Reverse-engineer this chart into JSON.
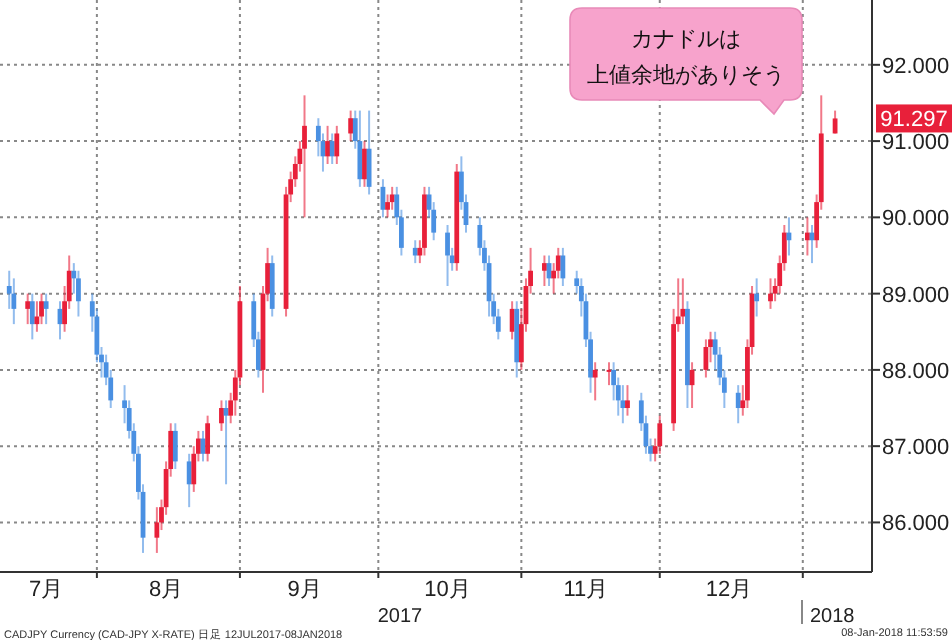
{
  "chart_data": {
    "type": "candlestick",
    "x": [
      "2017-07-13",
      "2017-07-14",
      "2017-07-17",
      "2017-07-18",
      "2017-07-19",
      "2017-07-20",
      "2017-07-21",
      "2017-07-24",
      "2017-07-25",
      "2017-07-26",
      "2017-07-27",
      "2017-07-28",
      "2017-07-31",
      "2017-08-01",
      "2017-08-02",
      "2017-08-03",
      "2017-08-04",
      "2017-08-07",
      "2017-08-08",
      "2017-08-09",
      "2017-08-10",
      "2017-08-11",
      "2017-08-14",
      "2017-08-15",
      "2017-08-16",
      "2017-08-17",
      "2017-08-18",
      "2017-08-21",
      "2017-08-22",
      "2017-08-23",
      "2017-08-24",
      "2017-08-25",
      "2017-08-28",
      "2017-08-29",
      "2017-08-30",
      "2017-08-31",
      "2017-09-01",
      "2017-09-04",
      "2017-09-05",
      "2017-09-06",
      "2017-09-07",
      "2017-09-08",
      "2017-09-11",
      "2017-09-12",
      "2017-09-13",
      "2017-09-14",
      "2017-09-15",
      "2017-09-18",
      "2017-09-19",
      "2017-09-20",
      "2017-09-21",
      "2017-09-22",
      "2017-09-25",
      "2017-09-26",
      "2017-09-27",
      "2017-09-28",
      "2017-09-29",
      "2017-10-02",
      "2017-10-03",
      "2017-10-04",
      "2017-10-05",
      "2017-10-06",
      "2017-10-09",
      "2017-10-10",
      "2017-10-11",
      "2017-10-12",
      "2017-10-13",
      "2017-10-16",
      "2017-10-17",
      "2017-10-18",
      "2017-10-19",
      "2017-10-20",
      "2017-10-23",
      "2017-10-24",
      "2017-10-25",
      "2017-10-26",
      "2017-10-27",
      "2017-10-30",
      "2017-10-31",
      "2017-11-01",
      "2017-11-02",
      "2017-11-03",
      "2017-11-06",
      "2017-11-07",
      "2017-11-08",
      "2017-11-09",
      "2017-11-10",
      "2017-11-13",
      "2017-11-14",
      "2017-11-15",
      "2017-11-16",
      "2017-11-17",
      "2017-11-20",
      "2017-11-21",
      "2017-11-22",
      "2017-11-23",
      "2017-11-24",
      "2017-11-27",
      "2017-11-28",
      "2017-11-29",
      "2017-11-30",
      "2017-12-01",
      "2017-12-04",
      "2017-12-05",
      "2017-12-06",
      "2017-12-07",
      "2017-12-08",
      "2017-12-11",
      "2017-12-12",
      "2017-12-13",
      "2017-12-14",
      "2017-12-15",
      "2017-12-18",
      "2017-12-19",
      "2017-12-20",
      "2017-12-21",
      "2017-12-22",
      "2017-12-25",
      "2017-12-26",
      "2017-12-27",
      "2017-12-28",
      "2017-12-29",
      "2018-01-02",
      "2018-01-03",
      "2018-01-04",
      "2018-01-05",
      "2018-01-08"
    ],
    "ohlc": [
      [
        89.1,
        89.3,
        88.8,
        89.0
      ],
      [
        89.0,
        89.2,
        88.6,
        88.8
      ],
      [
        88.8,
        89.0,
        88.6,
        88.9
      ],
      [
        88.9,
        89.0,
        88.4,
        88.6
      ],
      [
        88.6,
        88.9,
        88.5,
        88.7
      ],
      [
        88.7,
        89.0,
        88.6,
        88.9
      ],
      [
        88.9,
        89.0,
        88.6,
        88.8
      ],
      [
        88.8,
        88.9,
        88.4,
        88.6
      ],
      [
        88.6,
        89.1,
        88.5,
        88.9
      ],
      [
        88.9,
        89.5,
        88.8,
        89.3
      ],
      [
        89.3,
        89.4,
        89.0,
        89.2
      ],
      [
        89.2,
        89.3,
        88.7,
        88.9
      ],
      [
        88.9,
        89.0,
        88.5,
        88.7
      ],
      [
        88.7,
        88.8,
        88.1,
        88.2
      ],
      [
        88.2,
        88.3,
        87.9,
        88.1
      ],
      [
        88.1,
        88.2,
        87.8,
        87.9
      ],
      [
        87.9,
        88.0,
        87.5,
        87.6
      ],
      [
        87.6,
        87.8,
        87.3,
        87.5
      ],
      [
        87.5,
        87.6,
        87.1,
        87.2
      ],
      [
        87.2,
        87.3,
        86.8,
        86.9
      ],
      [
        86.9,
        87.0,
        86.3,
        86.4
      ],
      [
        86.4,
        86.5,
        85.6,
        85.8
      ],
      [
        85.8,
        86.2,
        85.6,
        86.0
      ],
      [
        86.0,
        86.3,
        85.9,
        86.2
      ],
      [
        86.2,
        86.8,
        86.1,
        86.7
      ],
      [
        86.7,
        87.3,
        86.6,
        87.2
      ],
      [
        87.2,
        87.3,
        86.7,
        86.8
      ],
      [
        86.8,
        86.9,
        86.2,
        86.5
      ],
      [
        86.5,
        87.0,
        86.4,
        86.9
      ],
      [
        86.9,
        87.2,
        86.8,
        87.1
      ],
      [
        87.1,
        87.2,
        86.8,
        86.9
      ],
      [
        86.9,
        87.4,
        86.8,
        87.3
      ],
      [
        87.3,
        87.6,
        87.2,
        87.5
      ],
      [
        87.5,
        87.6,
        86.5,
        87.4
      ],
      [
        87.4,
        87.7,
        87.3,
        87.6
      ],
      [
        87.6,
        88.0,
        87.4,
        87.9
      ],
      [
        87.9,
        89.1,
        87.8,
        88.9
      ],
      [
        88.9,
        89.0,
        88.3,
        88.4
      ],
      [
        88.4,
        88.5,
        87.9,
        88.0
      ],
      [
        88.0,
        89.1,
        87.7,
        89.0
      ],
      [
        89.0,
        89.6,
        88.9,
        89.4
      ],
      [
        89.4,
        89.5,
        88.7,
        88.8
      ],
      [
        88.8,
        90.4,
        88.7,
        90.3
      ],
      [
        90.3,
        90.6,
        90.2,
        90.5
      ],
      [
        90.5,
        90.8,
        90.4,
        90.7
      ],
      [
        90.7,
        91.0,
        90.6,
        90.9
      ],
      [
        90.9,
        91.6,
        90.0,
        91.2
      ],
      [
        91.2,
        91.3,
        90.8,
        91.0
      ],
      [
        91.0,
        91.1,
        90.6,
        90.8
      ],
      [
        90.8,
        91.2,
        90.7,
        91.0
      ],
      [
        91.0,
        91.1,
        90.7,
        90.8
      ],
      [
        90.8,
        91.2,
        90.7,
        91.1
      ],
      [
        91.1,
        91.4,
        91.0,
        91.3
      ],
      [
        91.3,
        91.4,
        90.9,
        91.0
      ],
      [
        91.0,
        91.4,
        90.4,
        90.5
      ],
      [
        90.5,
        91.0,
        90.4,
        90.9
      ],
      [
        90.9,
        91.4,
        90.3,
        90.4
      ],
      [
        90.4,
        90.5,
        90.0,
        90.1
      ],
      [
        90.1,
        90.3,
        90.0,
        90.2
      ],
      [
        90.2,
        90.4,
        90.1,
        90.3
      ],
      [
        90.3,
        90.4,
        89.9,
        90.0
      ],
      [
        90.0,
        90.1,
        89.5,
        89.6
      ],
      [
        89.6,
        89.7,
        89.4,
        89.5
      ],
      [
        89.5,
        89.7,
        89.4,
        89.6
      ],
      [
        89.6,
        90.4,
        89.5,
        90.3
      ],
      [
        90.3,
        90.4,
        90.0,
        90.1
      ],
      [
        90.1,
        90.2,
        89.7,
        89.8
      ],
      [
        89.8,
        89.9,
        89.1,
        89.5
      ],
      [
        89.5,
        89.6,
        89.3,
        89.4
      ],
      [
        89.4,
        90.7,
        89.3,
        90.6
      ],
      [
        90.6,
        90.8,
        90.1,
        90.2
      ],
      [
        90.2,
        90.3,
        89.8,
        89.9
      ],
      [
        89.9,
        90.0,
        89.5,
        89.6
      ],
      [
        89.6,
        89.7,
        89.3,
        89.4
      ],
      [
        89.4,
        89.5,
        88.7,
        88.9
      ],
      [
        88.9,
        89.0,
        88.6,
        88.7
      ],
      [
        88.7,
        88.8,
        88.4,
        88.5
      ],
      [
        88.5,
        88.9,
        88.4,
        88.8
      ],
      [
        88.8,
        88.9,
        87.9,
        88.1
      ],
      [
        88.1,
        88.8,
        88.0,
        88.6
      ],
      [
        88.6,
        89.2,
        88.5,
        89.1
      ],
      [
        89.1,
        89.6,
        89.0,
        89.3
      ],
      [
        89.3,
        89.5,
        89.1,
        89.4
      ],
      [
        89.4,
        89.5,
        89.1,
        89.2
      ],
      [
        89.2,
        89.4,
        89.0,
        89.3
      ],
      [
        89.3,
        89.6,
        89.2,
        89.5
      ],
      [
        89.5,
        89.6,
        89.1,
        89.2
      ],
      [
        89.2,
        89.3,
        89.0,
        89.1
      ],
      [
        89.1,
        89.2,
        88.7,
        88.9
      ],
      [
        88.9,
        89.0,
        88.3,
        88.4
      ],
      [
        88.4,
        88.5,
        87.7,
        87.9
      ],
      [
        87.9,
        88.1,
        87.6,
        88.0
      ],
      [
        88.0,
        88.1,
        87.8,
        88.0
      ],
      [
        88.0,
        88.1,
        87.6,
        87.8
      ],
      [
        87.8,
        87.9,
        87.4,
        87.6
      ],
      [
        87.6,
        87.8,
        87.3,
        87.5
      ],
      [
        87.5,
        87.8,
        87.4,
        87.6
      ],
      [
        87.6,
        87.7,
        87.2,
        87.3
      ],
      [
        87.3,
        87.4,
        86.9,
        87.0
      ],
      [
        87.0,
        87.1,
        86.8,
        86.9
      ],
      [
        86.9,
        87.1,
        86.8,
        87.0
      ],
      [
        87.0,
        87.4,
        86.9,
        87.3
      ],
      [
        87.3,
        88.8,
        87.2,
        88.6
      ],
      [
        88.6,
        89.2,
        88.5,
        88.7
      ],
      [
        88.7,
        89.2,
        88.6,
        88.8
      ],
      [
        88.8,
        88.9,
        87.5,
        87.8
      ],
      [
        87.8,
        88.1,
        87.5,
        88.0
      ],
      [
        88.0,
        88.4,
        87.9,
        88.3
      ],
      [
        88.3,
        88.5,
        88.1,
        88.4
      ],
      [
        88.4,
        88.5,
        88.0,
        88.2
      ],
      [
        88.2,
        88.3,
        87.8,
        87.9
      ],
      [
        87.9,
        88.0,
        87.5,
        87.7
      ],
      [
        87.7,
        87.8,
        87.3,
        87.5
      ],
      [
        87.5,
        87.8,
        87.4,
        87.6
      ],
      [
        87.6,
        88.4,
        87.5,
        88.3
      ],
      [
        88.3,
        89.1,
        88.2,
        89.0
      ],
      [
        89.0,
        89.2,
        88.7,
        88.9
      ],
      [
        88.9,
        89.2,
        88.8,
        89.0
      ],
      [
        89.0,
        89.2,
        88.9,
        89.1
      ],
      [
        89.1,
        89.5,
        89.0,
        89.4
      ],
      [
        89.4,
        89.9,
        89.3,
        89.8
      ],
      [
        89.8,
        90.0,
        89.5,
        89.7
      ],
      [
        89.7,
        90.0,
        89.5,
        89.8
      ],
      [
        89.8,
        89.9,
        89.4,
        89.7
      ],
      [
        89.7,
        90.3,
        89.6,
        90.2
      ],
      [
        90.2,
        91.6,
        90.1,
        91.1
      ],
      [
        91.1,
        91.4,
        91.1,
        91.297
      ]
    ],
    "colors": [
      "#4a90e2",
      "#4a90e2",
      "#e8203a",
      "#4a90e2",
      "#e8203a",
      "#e8203a",
      "#4a90e2",
      "#4a90e2",
      "#e8203a",
      "#e8203a",
      "#4a90e2",
      "#4a90e2",
      "#4a90e2",
      "#4a90e2",
      "#4a90e2",
      "#4a90e2",
      "#4a90e2",
      "#4a90e2",
      "#4a90e2",
      "#4a90e2",
      "#4a90e2",
      "#4a90e2",
      "#e8203a",
      "#e8203a",
      "#e8203a",
      "#e8203a",
      "#4a90e2",
      "#4a90e2",
      "#e8203a",
      "#e8203a",
      "#4a90e2",
      "#e8203a",
      "#e8203a",
      "#4a90e2",
      "#e8203a",
      "#e8203a",
      "#e8203a",
      "#4a90e2",
      "#4a90e2",
      "#e8203a",
      "#e8203a",
      "#4a90e2",
      "#e8203a",
      "#e8203a",
      "#e8203a",
      "#e8203a",
      "#e8203a",
      "#4a90e2",
      "#4a90e2",
      "#e8203a",
      "#4a90e2",
      "#e8203a",
      "#e8203a",
      "#4a90e2",
      "#4a90e2",
      "#e8203a",
      "#4a90e2",
      "#4a90e2",
      "#e8203a",
      "#e8203a",
      "#4a90e2",
      "#4a90e2",
      "#4a90e2",
      "#e8203a",
      "#e8203a",
      "#4a90e2",
      "#4a90e2",
      "#4a90e2",
      "#4a90e2",
      "#e8203a",
      "#4a90e2",
      "#4a90e2",
      "#4a90e2",
      "#4a90e2",
      "#4a90e2",
      "#4a90e2",
      "#4a90e2",
      "#e8203a",
      "#4a90e2",
      "#e8203a",
      "#e8203a",
      "#e8203a",
      "#e8203a",
      "#4a90e2",
      "#e8203a",
      "#e8203a",
      "#4a90e2",
      "#4a90e2",
      "#4a90e2",
      "#4a90e2",
      "#4a90e2",
      "#e8203a",
      "#e8203a",
      "#4a90e2",
      "#4a90e2",
      "#4a90e2",
      "#e8203a",
      "#4a90e2",
      "#4a90e2",
      "#4a90e2",
      "#e8203a",
      "#e8203a",
      "#e8203a",
      "#e8203a",
      "#e8203a",
      "#4a90e2",
      "#e8203a",
      "#e8203a",
      "#e8203a",
      "#4a90e2",
      "#4a90e2",
      "#4a90e2",
      "#4a90e2",
      "#e8203a",
      "#e8203a",
      "#e8203a",
      "#4a90e2",
      "#e8203a",
      "#e8203a",
      "#e8203a",
      "#e8203a",
      "#4a90e2",
      "#e8203a",
      "#4a90e2",
      "#e8203a",
      "#e8203a",
      "#e8203a"
    ],
    "xlim": [
      "2017-07-11",
      "2018-01-16"
    ],
    "xticks": [
      {
        "value": "2017-07-21",
        "label": "7月"
      },
      {
        "value": "2017-08-01",
        "label": null
      },
      {
        "value": "2017-08-16",
        "label": "8月"
      },
      {
        "value": "2017-09-01",
        "label": null
      },
      {
        "value": "2017-09-15",
        "label": "9月"
      },
      {
        "value": "2017-10-01",
        "label": null
      },
      {
        "value": "2017-10-16",
        "label": "10月"
      },
      {
        "value": "2017-11-01",
        "label": null
      },
      {
        "value": "2017-11-15",
        "label": "11月"
      },
      {
        "value": "2017-12-01",
        "label": null
      },
      {
        "value": "2017-12-16",
        "label": "12月"
      },
      {
        "value": "2018-01-01",
        "label": null
      }
    ],
    "ylim": [
      85.35,
      92.85
    ],
    "yticks": [
      {
        "value": 86,
        "label": "86.000"
      },
      {
        "value": 87,
        "label": "87.000"
      },
      {
        "value": 88,
        "label": "88.000"
      },
      {
        "value": 89,
        "label": "89.000"
      },
      {
        "value": 90,
        "label": "90.000"
      },
      {
        "value": 91,
        "label": "91.000"
      },
      {
        "value": 92,
        "label": "92.000"
      }
    ],
    "grid": true,
    "annotations": [
      {
        "text": "91.297",
        "x": "2018-01-08",
        "y": 91.297
      },
      "カナドルは",
      "上値余地がありそう",
      "2017",
      "2018",
      "CADJPY Currency (CAD-JPY X-RATE) 日足 12JUL2017-08JAN2018",
      "08-Jan-2018 11:53:59"
    ]
  }
}
